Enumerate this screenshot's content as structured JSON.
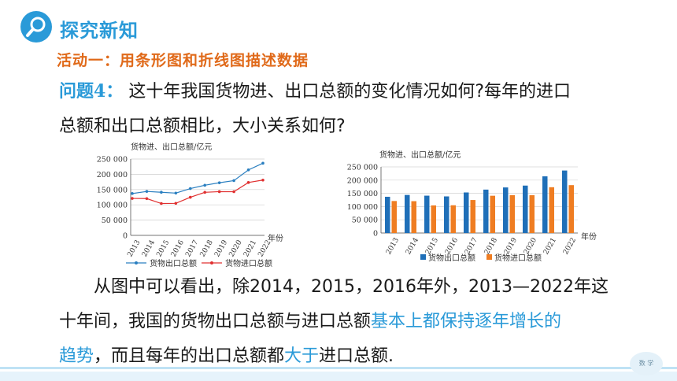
{
  "header": {
    "title": "探究新知",
    "icon": "magnifier-icon",
    "accent": "#2a9ad8"
  },
  "activity": {
    "title": "活动一：用条形图和折线图描述数据",
    "color": "#e06a1a"
  },
  "question": {
    "label": "问题4：",
    "line1": "这十年我国货物进、出口总额的变化情况如何?每年的进口",
    "line2": "总额和出口总额相比，大小关系如何?"
  },
  "conclusion": {
    "line1": "从图中可以看出，除2014，2015，2016年外，2013—2022年这",
    "line2_a": "十年间，我国的货物出口总额与进口总额",
    "line2_b": "基本上都保持逐年增长的",
    "line3_a": "趋势",
    "line3_b": "，而且每年的出口总额都",
    "line3_c": "大于",
    "line3_d": "进口总额."
  },
  "footer": {
    "badge": "数 学"
  },
  "chart_data": [
    {
      "type": "line",
      "ylabel": "货物进、出口总额/亿元",
      "xlabel": "年份",
      "categories": [
        "2013",
        "2014",
        "2015",
        "2016",
        "2017",
        "2018",
        "2019",
        "2020",
        "2021",
        "2022"
      ],
      "yticks": [
        "0",
        "50 000",
        "100 000",
        "150 000",
        "200 000",
        "250 000"
      ],
      "ylim": [
        0,
        250000
      ],
      "grid": true,
      "legend_position": "bottom",
      "series": [
        {
          "name": "货物出口总额",
          "color": "#2a7fc0",
          "values": [
            137000,
            143900,
            141200,
            138400,
            153300,
            164100,
            172300,
            179300,
            214300,
            236300
          ]
        },
        {
          "name": "货物进口总额",
          "color": "#e03030",
          "values": [
            121000,
            120400,
            104300,
            104900,
            124800,
            140900,
            143200,
            142900,
            173100,
            181000
          ]
        }
      ]
    },
    {
      "type": "bar",
      "ylabel": "货物进、出口总额/亿元",
      "xlabel": "年份",
      "categories": [
        "2013",
        "2014",
        "2015",
        "2016",
        "2017",
        "2018",
        "2019",
        "2020",
        "2021",
        "2022"
      ],
      "yticks": [
        "0",
        "50 000",
        "100 000",
        "150 000",
        "200 000",
        "250 000"
      ],
      "ylim": [
        0,
        250000
      ],
      "grid": true,
      "legend_position": "bottom",
      "series": [
        {
          "name": "货物出口总额",
          "color": "#1f6fb8",
          "values": [
            137000,
            143900,
            141200,
            138400,
            153300,
            164100,
            172300,
            179300,
            214300,
            236300
          ]
        },
        {
          "name": "货物进口总额",
          "color": "#ef7d22",
          "values": [
            121000,
            120400,
            104300,
            104900,
            124800,
            140900,
            143200,
            142900,
            173100,
            181000
          ]
        }
      ]
    }
  ]
}
